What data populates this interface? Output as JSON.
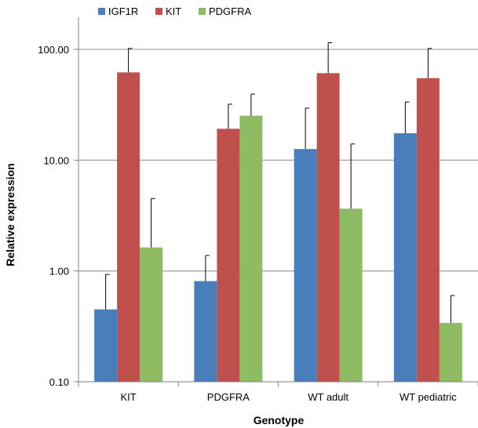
{
  "chart_data": {
    "type": "bar",
    "title": "",
    "xlabel": "Genotype",
    "ylabel": "Relative expression",
    "yscale": "log",
    "ylim": [
      0.1,
      200
    ],
    "yticks": [
      0.1,
      1,
      10,
      100
    ],
    "ytick_labels": [
      "0.10",
      "1.00",
      "10.00",
      "100.00"
    ],
    "grid": "horizontal",
    "legend_position": "top-left",
    "categories": [
      "KIT",
      "PDGFRA",
      "WT adult",
      "WT pediatric"
    ],
    "series": [
      {
        "name": "IGF1R",
        "color": "#4a7ebb",
        "values": [
          0.45,
          0.81,
          12.6,
          17.5
        ],
        "error_upper": [
          0.93,
          1.38,
          29.5,
          33.5
        ]
      },
      {
        "name": "KIT",
        "color": "#c0504d",
        "values": [
          62,
          19.2,
          61,
          55
        ],
        "error_upper": [
          102,
          32,
          115,
          102
        ]
      },
      {
        "name": "PDGFRA",
        "color": "#8fbc62",
        "values": [
          1.63,
          25.2,
          3.65,
          0.34
        ],
        "error_upper": [
          4.5,
          39.5,
          14,
          0.6
        ]
      }
    ]
  }
}
